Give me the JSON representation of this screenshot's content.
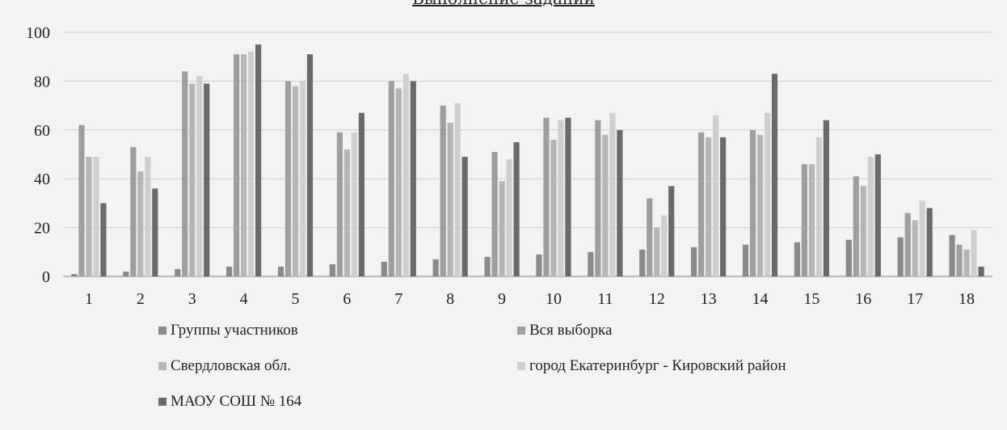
{
  "chart_data": {
    "type": "bar",
    "title": "Выполнение заданий",
    "categories": [
      "1",
      "2",
      "3",
      "4",
      "5",
      "6",
      "7",
      "8",
      "9",
      "10",
      "11",
      "12",
      "13",
      "14",
      "15",
      "16",
      "17",
      "18"
    ],
    "ylim": [
      0,
      100
    ],
    "yticks": [
      0,
      20,
      40,
      60,
      80,
      100
    ],
    "grid": true,
    "legend_position": "bottom",
    "series": [
      {
        "name": "Группы участников",
        "color": "#8a8a8a",
        "values": [
          1,
          2,
          3,
          4,
          4,
          5,
          6,
          7,
          8,
          9,
          10,
          11,
          12,
          13,
          14,
          15,
          16,
          17
        ]
      },
      {
        "name": "Вся выборка",
        "color": "#9e9e9e",
        "values": [
          62,
          53,
          84,
          91,
          80,
          59,
          80,
          70,
          51,
          65,
          64,
          32,
          59,
          60,
          46,
          41,
          26,
          13
        ]
      },
      {
        "name": "Свердловская обл.",
        "color": "#b6b6b6",
        "values": [
          49,
          43,
          79,
          91,
          78,
          52,
          77,
          63,
          39,
          56,
          58,
          20,
          57,
          58,
          46,
          37,
          23,
          11
        ]
      },
      {
        "name": "город Екатеринбург - Кировский район",
        "color": "#cfcfcf",
        "values": [
          49,
          49,
          82,
          92,
          80,
          59,
          83,
          71,
          48,
          64,
          67,
          25,
          66,
          67,
          57,
          49,
          31,
          19
        ]
      },
      {
        "name": "МАОУ СОШ № 164",
        "color": "#6a6a6a",
        "values": [
          30,
          36,
          79,
          95,
          91,
          67,
          80,
          49,
          55,
          65,
          60,
          37,
          57,
          83,
          64,
          50,
          28,
          4
        ]
      }
    ]
  }
}
